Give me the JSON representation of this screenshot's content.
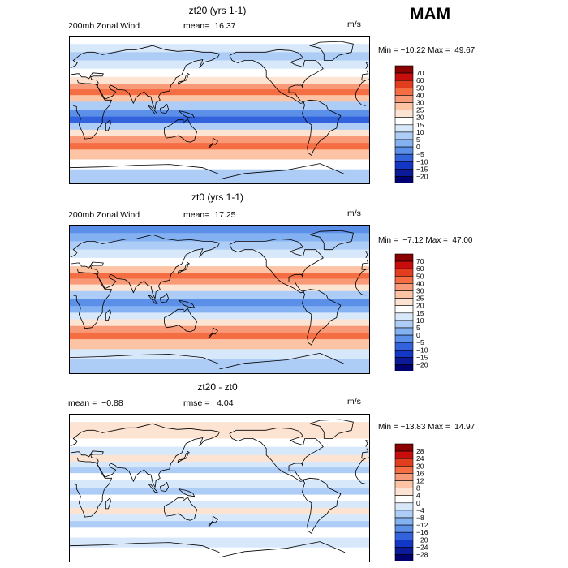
{
  "season": "MAM",
  "panels": [
    {
      "title": "zt20 (yrs 1-1)",
      "left_label": "200mb Zonal Wind",
      "mid_label": "mean=  16.37",
      "units": "m/s",
      "minmax": "Min = −10.22 Max =  49.67",
      "legend": {
        "levels": [
          "70",
          "60",
          "50",
          "40",
          "30",
          "25",
          "20",
          "15",
          "10",
          "5",
          "0",
          "−5",
          "−10",
          "−15",
          "−20"
        ],
        "colors": [
          "#8b0000",
          "#c80d0d",
          "#e33d1f",
          "#f46d43",
          "#f89a78",
          "#fcc3a5",
          "#fde3d2",
          "#ffffff",
          "#d8e8fb",
          "#aecdf6",
          "#83b1f2",
          "#5b8fe8",
          "#3363dc",
          "#1236c5",
          "#0a1a98",
          "#000070"
        ]
      },
      "bands": [
        {
          "lat": 90,
          "c": 7
        },
        {
          "lat": 80,
          "c": 8
        },
        {
          "lat": 70,
          "c": 9
        },
        {
          "lat": 60,
          "c": 8
        },
        {
          "lat": 50,
          "c": 7
        },
        {
          "lat": 40,
          "c": 6
        },
        {
          "lat": 32,
          "c": 4
        },
        {
          "lat": 25,
          "c": 3
        },
        {
          "lat": 18,
          "c": 5
        },
        {
          "lat": 10,
          "c": 9
        },
        {
          "lat": 0,
          "c": 11
        },
        {
          "lat": -8,
          "c": 12
        },
        {
          "lat": -16,
          "c": 9
        },
        {
          "lat": -24,
          "c": 6
        },
        {
          "lat": -32,
          "c": 4
        },
        {
          "lat": -40,
          "c": 3
        },
        {
          "lat": -48,
          "c": 5
        },
        {
          "lat": -60,
          "c": 7
        },
        {
          "lat": -72,
          "c": 9
        },
        {
          "lat": -90,
          "c": 10
        }
      ]
    },
    {
      "title": "zt0 (yrs 1-1)",
      "left_label": "200mb Zonal Wind",
      "mid_label": "mean=  17.25",
      "units": "m/s",
      "minmax": "Min =  −7.12 Max =  47.00",
      "legend": {
        "levels": [
          "70",
          "60",
          "50",
          "40",
          "30",
          "25",
          "20",
          "15",
          "10",
          "5",
          "0",
          "−5",
          "−10",
          "−15",
          "−20"
        ],
        "colors": [
          "#8b0000",
          "#c80d0d",
          "#e33d1f",
          "#f46d43",
          "#f89a78",
          "#fcc3a5",
          "#fde3d2",
          "#ffffff",
          "#d8e8fb",
          "#aecdf6",
          "#83b1f2",
          "#5b8fe8",
          "#3363dc",
          "#1236c5",
          "#0a1a98",
          "#000070"
        ]
      },
      "bands": [
        {
          "lat": 90,
          "c": 11
        },
        {
          "lat": 80,
          "c": 10
        },
        {
          "lat": 70,
          "c": 9
        },
        {
          "lat": 60,
          "c": 8
        },
        {
          "lat": 50,
          "c": 7
        },
        {
          "lat": 40,
          "c": 5
        },
        {
          "lat": 32,
          "c": 3
        },
        {
          "lat": 25,
          "c": 4
        },
        {
          "lat": 18,
          "c": 6
        },
        {
          "lat": 10,
          "c": 9
        },
        {
          "lat": 0,
          "c": 11
        },
        {
          "lat": -8,
          "c": 10
        },
        {
          "lat": -16,
          "c": 8
        },
        {
          "lat": -24,
          "c": 6
        },
        {
          "lat": -32,
          "c": 4
        },
        {
          "lat": -40,
          "c": 3
        },
        {
          "lat": -48,
          "c": 5
        },
        {
          "lat": -60,
          "c": 8
        },
        {
          "lat": -72,
          "c": 9
        },
        {
          "lat": -90,
          "c": 8
        }
      ]
    },
    {
      "title": "zt20 - zt0",
      "left_label": "mean =  −0.88",
      "mid_label": "rmse =   4.04",
      "units": "m/s",
      "minmax": "Min = −13.83 Max =  14.97",
      "legend": {
        "levels": [
          "28",
          "24",
          "20",
          "16",
          "12",
          "8",
          "4",
          "0",
          "−4",
          "−8",
          "−12",
          "−16",
          "−20",
          "−24",
          "−28"
        ],
        "colors": [
          "#8b0000",
          "#c80d0d",
          "#e33d1f",
          "#f46d43",
          "#f89a78",
          "#fcc3a5",
          "#fde3d2",
          "#ffffff",
          "#d8e8fb",
          "#aecdf6",
          "#83b1f2",
          "#5b8fe8",
          "#3363dc",
          "#1236c5",
          "#0a1a98",
          "#000070"
        ]
      },
      "bands": [
        {
          "lat": 90,
          "c": 7
        },
        {
          "lat": 80,
          "c": 6
        },
        {
          "lat": 70,
          "c": 6
        },
        {
          "lat": 60,
          "c": 7
        },
        {
          "lat": 50,
          "c": 8
        },
        {
          "lat": 40,
          "c": 6
        },
        {
          "lat": 32,
          "c": 8
        },
        {
          "lat": 25,
          "c": 9
        },
        {
          "lat": 18,
          "c": 7
        },
        {
          "lat": 10,
          "c": 8
        },
        {
          "lat": 0,
          "c": 9
        },
        {
          "lat": -8,
          "c": 7
        },
        {
          "lat": -16,
          "c": 8
        },
        {
          "lat": -24,
          "c": 6
        },
        {
          "lat": -32,
          "c": 8
        },
        {
          "lat": -40,
          "c": 9
        },
        {
          "lat": -48,
          "c": 7
        },
        {
          "lat": -60,
          "c": 8
        },
        {
          "lat": -72,
          "c": 7
        },
        {
          "lat": -90,
          "c": 8
        }
      ]
    }
  ],
  "coastlines": {
    "north-america": [
      [
        -168,
        66
      ],
      [
        -160,
        70
      ],
      [
        -140,
        70
      ],
      [
        -125,
        70
      ],
      [
        -110,
        73
      ],
      [
        -95,
        72
      ],
      [
        -85,
        69
      ],
      [
        -80,
        63
      ],
      [
        -95,
        58
      ],
      [
        -90,
        55
      ],
      [
        -80,
        52
      ],
      [
        -78,
        60
      ],
      [
        -65,
        60
      ],
      [
        -60,
        55
      ],
      [
        -56,
        50
      ],
      [
        -66,
        44
      ],
      [
        -70,
        42
      ],
      [
        -76,
        38
      ],
      [
        -81,
        31
      ],
      [
        -80,
        26
      ],
      [
        -82,
        30
      ],
      [
        -90,
        30
      ],
      [
        -97,
        27
      ],
      [
        -97,
        21
      ],
      [
        -90,
        21
      ],
      [
        -87,
        16
      ],
      [
        -83,
        11
      ],
      [
        -79,
        9
      ],
      [
        -83,
        8
      ],
      [
        -92,
        14
      ],
      [
        -105,
        20
      ],
      [
        -110,
        24
      ],
      [
        -115,
        30
      ],
      [
        -118,
        34
      ],
      [
        -124,
        40
      ],
      [
        -124,
        48
      ],
      [
        -130,
        55
      ],
      [
        -140,
        60
      ],
      [
        -150,
        60
      ],
      [
        -158,
        57
      ],
      [
        -165,
        60
      ],
      [
        -168,
        66
      ]
    ],
    "greenland": [
      [
        -55,
        60
      ],
      [
        -45,
        60
      ],
      [
        -38,
        66
      ],
      [
        -22,
        70
      ],
      [
        -20,
        80
      ],
      [
        -35,
        83
      ],
      [
        -60,
        82
      ],
      [
        -72,
        78
      ],
      [
        -60,
        75
      ],
      [
        -55,
        68
      ],
      [
        -55,
        60
      ]
    ],
    "south-america": [
      [
        -80,
        10
      ],
      [
        -72,
        12
      ],
      [
        -62,
        11
      ],
      [
        -52,
        5
      ],
      [
        -50,
        0
      ],
      [
        -45,
        -2
      ],
      [
        -35,
        -7
      ],
      [
        -39,
        -15
      ],
      [
        -40,
        -22
      ],
      [
        -48,
        -26
      ],
      [
        -52,
        -32
      ],
      [
        -58,
        -36
      ],
      [
        -62,
        -40
      ],
      [
        -65,
        -45
      ],
      [
        -68,
        -50
      ],
      [
        -70,
        -55
      ],
      [
        -74,
        -52
      ],
      [
        -75,
        -45
      ],
      [
        -73,
        -38
      ],
      [
        -71,
        -30
      ],
      [
        -70,
        -18
      ],
      [
        -76,
        -14
      ],
      [
        -81,
        -5
      ],
      [
        -80,
        0
      ],
      [
        -78,
        6
      ],
      [
        -80,
        10
      ]
    ],
    "africa": [
      [
        -17,
        15
      ],
      [
        -17,
        21
      ],
      [
        -13,
        28
      ],
      [
        -10,
        33
      ],
      [
        -5,
        36
      ],
      [
        10,
        37
      ],
      [
        11,
        33
      ],
      [
        20,
        32
      ],
      [
        25,
        32
      ],
      [
        32,
        31
      ],
      [
        35,
        27
      ],
      [
        39,
        18
      ],
      [
        43,
        12
      ],
      [
        51,
        12
      ],
      [
        48,
        5
      ],
      [
        42,
        -2
      ],
      [
        40,
        -10
      ],
      [
        40,
        -16
      ],
      [
        35,
        -22
      ],
      [
        33,
        -28
      ],
      [
        27,
        -34
      ],
      [
        19,
        -35
      ],
      [
        17,
        -29
      ],
      [
        12,
        -18
      ],
      [
        14,
        -10
      ],
      [
        9,
        -1
      ],
      [
        9,
        4
      ],
      [
        5,
        5
      ],
      [
        -5,
        5
      ],
      [
        -10,
        6
      ],
      [
        -14,
        10
      ],
      [
        -17,
        15
      ]
    ],
    "eurasia": [
      [
        -10,
        36
      ],
      [
        -9,
        43
      ],
      [
        -2,
        44
      ],
      [
        -4,
        48
      ],
      [
        2,
        51
      ],
      [
        8,
        54
      ],
      [
        10,
        57
      ],
      [
        5,
        60
      ],
      [
        10,
        64
      ],
      [
        15,
        68
      ],
      [
        22,
        70
      ],
      [
        30,
        70
      ],
      [
        40,
        67
      ],
      [
        45,
        68
      ],
      [
        55,
        70
      ],
      [
        70,
        73
      ],
      [
        80,
        73
      ],
      [
        100,
        78
      ],
      [
        115,
        73
      ],
      [
        130,
        71
      ],
      [
        145,
        72
      ],
      [
        160,
        70
      ],
      [
        170,
        70
      ],
      [
        180,
        68
      ],
      [
        178,
        64
      ],
      [
        170,
        60
      ],
      [
        162,
        58
      ],
      [
        156,
        51
      ],
      [
        160,
        61
      ],
      [
        150,
        59
      ],
      [
        140,
        54
      ],
      [
        135,
        43
      ],
      [
        128,
        39
      ],
      [
        126,
        35
      ],
      [
        122,
        30
      ],
      [
        120,
        23
      ],
      [
        110,
        21
      ],
      [
        107,
        16
      ],
      [
        109,
        12
      ],
      [
        104,
        9
      ],
      [
        103,
        1
      ],
      [
        100,
        7
      ],
      [
        98,
        16
      ],
      [
        94,
        17
      ],
      [
        90,
        22
      ],
      [
        86,
        20
      ],
      [
        80,
        15
      ],
      [
        77,
        8
      ],
      [
        72,
        20
      ],
      [
        67,
        24
      ],
      [
        57,
        25
      ],
      [
        56,
        27
      ],
      [
        50,
        30
      ],
      [
        48,
        28
      ],
      [
        50,
        25
      ],
      [
        56,
        22
      ],
      [
        52,
        17
      ],
      [
        43,
        13
      ],
      [
        38,
        22
      ],
      [
        34,
        28
      ],
      [
        35,
        33
      ],
      [
        33,
        36
      ],
      [
        27,
        37
      ],
      [
        26,
        40
      ],
      [
        29,
        41
      ],
      [
        40,
        41
      ],
      [
        41,
        44
      ],
      [
        28,
        45
      ],
      [
        24,
        38
      ],
      [
        20,
        40
      ],
      [
        15,
        40
      ],
      [
        12,
        44
      ],
      [
        10,
        44
      ],
      [
        3,
        43
      ],
      [
        -1,
        37
      ],
      [
        -6,
        36
      ],
      [
        -10,
        36
      ]
    ],
    "australia": [
      [
        114,
        -22
      ],
      [
        122,
        -18
      ],
      [
        130,
        -12
      ],
      [
        137,
        -12
      ],
      [
        136,
        -16
      ],
      [
        142,
        -11
      ],
      [
        146,
        -19
      ],
      [
        153,
        -26
      ],
      [
        151,
        -33
      ],
      [
        150,
        -37
      ],
      [
        145,
        -39
      ],
      [
        140,
        -38
      ],
      [
        137,
        -35
      ],
      [
        131,
        -31
      ],
      [
        124,
        -33
      ],
      [
        116,
        -34
      ],
      [
        114,
        -28
      ],
      [
        114,
        -22
      ]
    ],
    "britain": [
      [
        -5,
        50
      ],
      [
        1,
        51
      ],
      [
        0,
        54
      ],
      [
        -2,
        57
      ],
      [
        -5,
        58
      ],
      [
        -3,
        54
      ],
      [
        -5,
        50
      ]
    ],
    "japan": [
      [
        130,
        31
      ],
      [
        135,
        34
      ],
      [
        140,
        36
      ],
      [
        142,
        40
      ],
      [
        141,
        45
      ],
      [
        144,
        43
      ],
      [
        140,
        42
      ],
      [
        139,
        38
      ],
      [
        136,
        35
      ],
      [
        131,
        34
      ],
      [
        130,
        31
      ]
    ],
    "borneo": [
      [
        109,
        2
      ],
      [
        110,
        -3
      ],
      [
        116,
        -4
      ],
      [
        119,
        1
      ],
      [
        117,
        7
      ],
      [
        113,
        3
      ],
      [
        109,
        2
      ]
    ],
    "sumatra": [
      [
        95,
        5
      ],
      [
        98,
        4
      ],
      [
        106,
        -5
      ],
      [
        103,
        -5
      ],
      [
        99,
        0
      ],
      [
        95,
        5
      ]
    ],
    "new-guinea": [
      [
        131,
        -1
      ],
      [
        141,
        -3
      ],
      [
        148,
        -6
      ],
      [
        150,
        -10
      ],
      [
        143,
        -9
      ],
      [
        138,
        -7
      ],
      [
        131,
        -1
      ]
    ],
    "madagascar": [
      [
        44,
        -25
      ],
      [
        47,
        -25
      ],
      [
        50,
        -16
      ],
      [
        49,
        -12
      ],
      [
        44,
        -17
      ],
      [
        44,
        -25
      ]
    ],
    "new-zealand": [
      [
        172,
        -34
      ],
      [
        178,
        -38
      ],
      [
        175,
        -42
      ],
      [
        172,
        -41
      ],
      [
        168,
        -46
      ],
      [
        167,
        -45
      ],
      [
        172,
        -40
      ],
      [
        172,
        -34
      ]
    ],
    "antarctica": [
      [
        -180,
        -84
      ],
      [
        -150,
        -77
      ],
      [
        -100,
        -73
      ],
      [
        -60,
        -65
      ],
      [
        -30,
        -78
      ],
      [
        0,
        -70
      ],
      [
        40,
        -69
      ],
      [
        80,
        -67
      ],
      [
        120,
        -66
      ],
      [
        160,
        -70
      ],
      [
        180,
        -78
      ]
    ]
  }
}
